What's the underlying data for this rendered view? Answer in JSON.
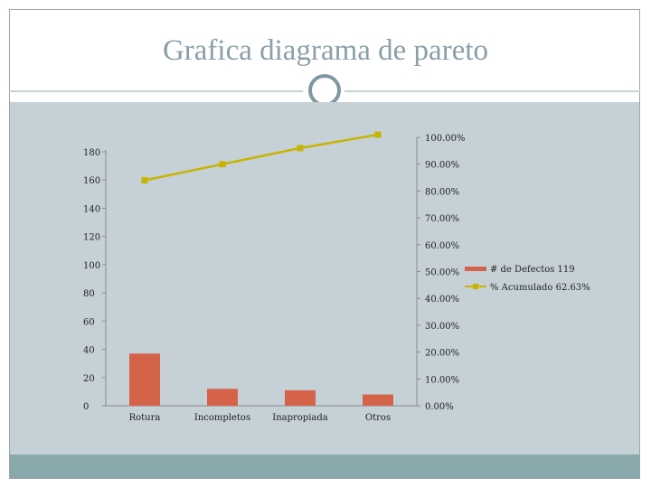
{
  "title": "Grafica diagrama de pareto",
  "colors": {
    "bar": "#d5634a",
    "line": "#c9b300",
    "background": "#c5d1d7",
    "footer": "#89a9ac",
    "title": "#8a9fa7"
  },
  "chart_data": {
    "type": "bar",
    "categories": [
      "Rotura",
      "Incompletos",
      "Inapropiada",
      "Otros"
    ],
    "series": [
      {
        "name": "# de Defectos 119",
        "type": "bar",
        "axis": "left",
        "values": [
          37,
          12,
          11,
          8
        ]
      },
      {
        "name": "% Acumulado 62.63%",
        "type": "line",
        "axis": "right",
        "marker": "square",
        "values": [
          0.84,
          0.9,
          0.96,
          1.01
        ]
      }
    ],
    "ylim": [
      0,
      180
    ],
    "yticks": [
      "0",
      "20",
      "40",
      "60",
      "80",
      "100",
      "120",
      "140",
      "160",
      "180"
    ],
    "y2lim": [
      0,
      1.0
    ],
    "y2ticks": [
      "0.00%",
      "10.00%",
      "20.00%",
      "30.00%",
      "40.00%",
      "50.00%",
      "60.00%",
      "70.00%",
      "80.00%",
      "90.00%",
      "100.00%"
    ],
    "legend": "right",
    "grid": false
  }
}
